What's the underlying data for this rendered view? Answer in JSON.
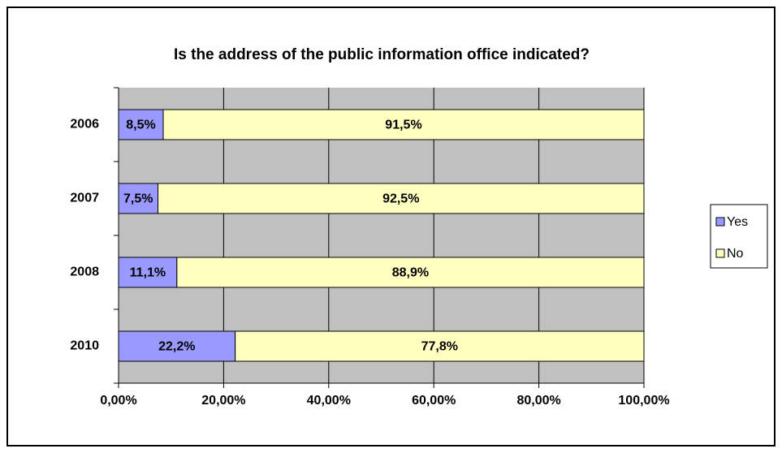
{
  "chart_data": {
    "type": "stacked_bar_horizontal",
    "title": "Is the address of the public information office indicated?",
    "categories": [
      "2006",
      "2007",
      "2008",
      "2010"
    ],
    "series": [
      {
        "name": "Yes",
        "color": "#9999ff",
        "values": [
          8.5,
          7.5,
          11.1,
          22.2
        ],
        "value_labels": [
          "8,5%",
          "7,5%",
          "11,1%",
          "22,2%"
        ]
      },
      {
        "name": "No",
        "color": "#ffffc0",
        "values": [
          91.5,
          92.5,
          88.9,
          77.8
        ],
        "value_labels": [
          "91,5%",
          "92,5%",
          "88,9%",
          "77,8%"
        ]
      }
    ],
    "xlim": [
      0,
      100
    ],
    "xticks": [
      {
        "value": 0,
        "label": "0,00%"
      },
      {
        "value": 20,
        "label": "20,00%"
      },
      {
        "value": 40,
        "label": "40,00%"
      },
      {
        "value": 60,
        "label": "60,00%"
      },
      {
        "value": 80,
        "label": "80,00%"
      },
      {
        "value": 100,
        "label": "100,00%"
      }
    ],
    "grid": true,
    "legend": "right"
  }
}
